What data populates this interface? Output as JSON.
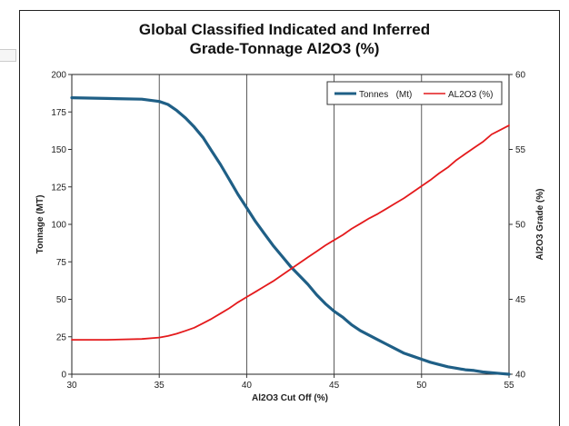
{
  "chart_data": {
    "type": "line",
    "title_lines": [
      "Global Classified Indicated and Inferred",
      "Grade-Tonnage Al2O3 (%)"
    ],
    "xlabel": "Al2O3 Cut Off (%)",
    "ylabel": "Tonnage (MT)",
    "y2label": "Al2O3 Grade (%)",
    "xlim": [
      30,
      55
    ],
    "ylim": [
      0,
      200
    ],
    "y2lim": [
      40,
      60
    ],
    "x_ticks": [
      "30",
      "35",
      "40",
      "45",
      "50",
      "55"
    ],
    "y_ticks": [
      "0",
      "25",
      "50",
      "75",
      "100",
      "125",
      "150",
      "175",
      "200"
    ],
    "y2_ticks": [
      "40",
      "45",
      "50",
      "55",
      "60"
    ],
    "grid": "vertical",
    "legend_placement": "top-right",
    "series": [
      {
        "name": "Tonnes   (Mt)",
        "axis": "left",
        "color": "#1f5f86",
        "x": [
          30,
          32,
          34,
          35,
          35.5,
          36,
          36.5,
          37,
          37.5,
          38,
          38.5,
          39,
          39.5,
          40,
          40.5,
          41,
          41.5,
          42,
          42.5,
          43,
          43.5,
          44,
          44.5,
          45,
          45.5,
          46,
          46.5,
          47,
          47.5,
          48,
          48.5,
          49,
          49.5,
          50,
          50.5,
          51,
          51.5,
          52,
          52.5,
          53,
          53.5,
          54,
          54.5,
          55
        ],
        "values": [
          184.5,
          184,
          183.5,
          182,
          180,
          176,
          171,
          165,
          158,
          149,
          140,
          130,
          120,
          111,
          102,
          94,
          86,
          79,
          72,
          66,
          60,
          53,
          47,
          42,
          38,
          33,
          29,
          26,
          23,
          20,
          17,
          14,
          12,
          10,
          8,
          6.5,
          5,
          4,
          3,
          2.5,
          1.5,
          1,
          0.5,
          0
        ]
      },
      {
        "name": "AL2O3 (%)",
        "axis": "right",
        "color": "#e41a1c",
        "x": [
          30,
          32,
          34,
          35,
          35.5,
          36,
          36.5,
          37,
          37.5,
          38,
          38.5,
          39,
          39.5,
          40,
          40.5,
          41,
          41.5,
          42,
          42.5,
          43,
          43.5,
          44,
          44.5,
          45,
          45.5,
          46,
          46.5,
          47,
          47.5,
          48,
          48.5,
          49,
          49.5,
          50,
          50.5,
          51,
          51.5,
          52,
          52.5,
          53,
          53.5,
          54,
          54.5,
          55
        ],
        "values": [
          42.3,
          42.3,
          42.35,
          42.45,
          42.55,
          42.7,
          42.9,
          43.1,
          43.4,
          43.7,
          44.05,
          44.4,
          44.8,
          45.15,
          45.5,
          45.85,
          46.2,
          46.6,
          47.0,
          47.4,
          47.8,
          48.2,
          48.6,
          48.95,
          49.3,
          49.7,
          50.05,
          50.4,
          50.7,
          51.05,
          51.4,
          51.75,
          52.15,
          52.55,
          52.95,
          53.4,
          53.8,
          54.3,
          54.7,
          55.1,
          55.5,
          56.0,
          56.3,
          56.6
        ]
      }
    ]
  }
}
